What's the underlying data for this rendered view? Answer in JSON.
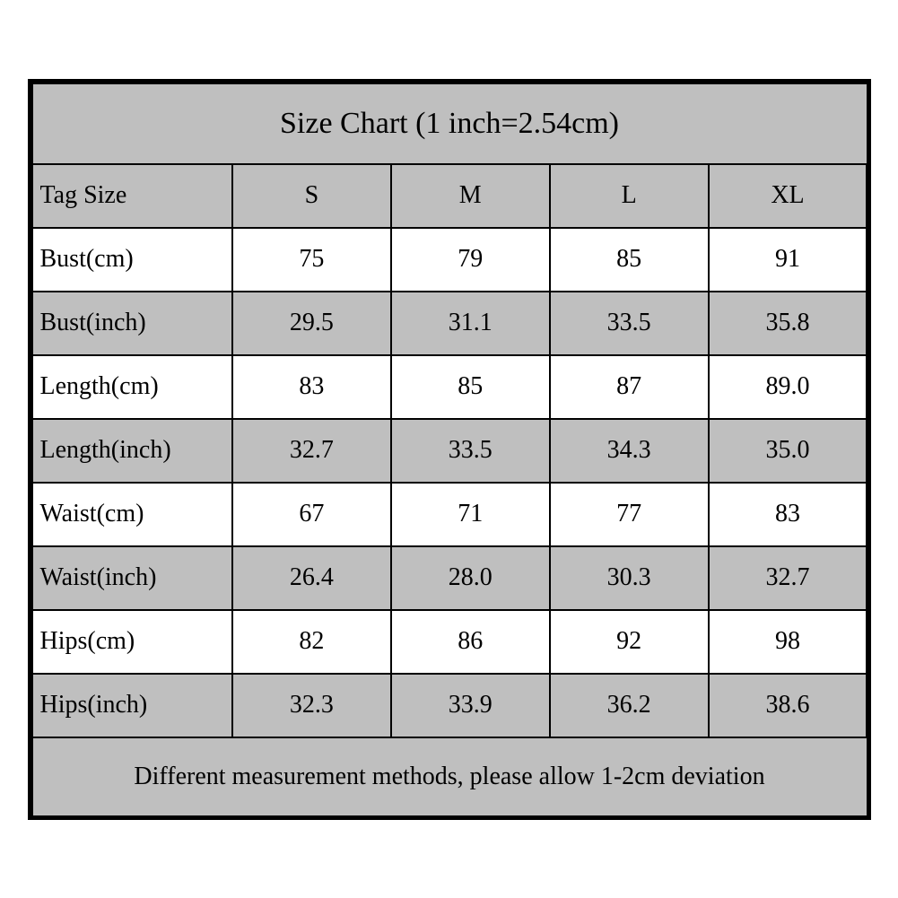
{
  "table": {
    "type": "table",
    "title": "Size Chart (1 inch=2.54cm)",
    "footer": "Different measurement methods, please allow 1-2cm deviation",
    "columns": [
      "Tag Size",
      "S",
      "M",
      "L",
      "XL"
    ],
    "header_bg": "#bfbfbf",
    "shade_bg": "#bfbfbf",
    "plain_bg": "#ffffff",
    "border_color": "#000000",
    "text_color": "#000000",
    "title_fontsize": 34,
    "body_fontsize": 28,
    "column_widths_pct": [
      24,
      19,
      19,
      19,
      19
    ],
    "rows": [
      {
        "label": "Bust(cm)",
        "values": [
          "75",
          "79",
          "85",
          "91"
        ],
        "shaded": false
      },
      {
        "label": "Bust(inch)",
        "values": [
          "29.5",
          "31.1",
          "33.5",
          "35.8"
        ],
        "shaded": true
      },
      {
        "label": "Length(cm)",
        "values": [
          "83",
          "85",
          "87",
          "89.0"
        ],
        "shaded": false
      },
      {
        "label": "Length(inch)",
        "values": [
          "32.7",
          "33.5",
          "34.3",
          "35.0"
        ],
        "shaded": true
      },
      {
        "label": "Waist(cm)",
        "values": [
          "67",
          "71",
          "77",
          "83"
        ],
        "shaded": false
      },
      {
        "label": "Waist(inch)",
        "values": [
          "26.4",
          "28.0",
          "30.3",
          "32.7"
        ],
        "shaded": true
      },
      {
        "label": "Hips(cm)",
        "values": [
          "82",
          "86",
          "92",
          "98"
        ],
        "shaded": false
      },
      {
        "label": "Hips(inch)",
        "values": [
          "32.3",
          "33.9",
          "36.2",
          "38.6"
        ],
        "shaded": true
      }
    ]
  }
}
